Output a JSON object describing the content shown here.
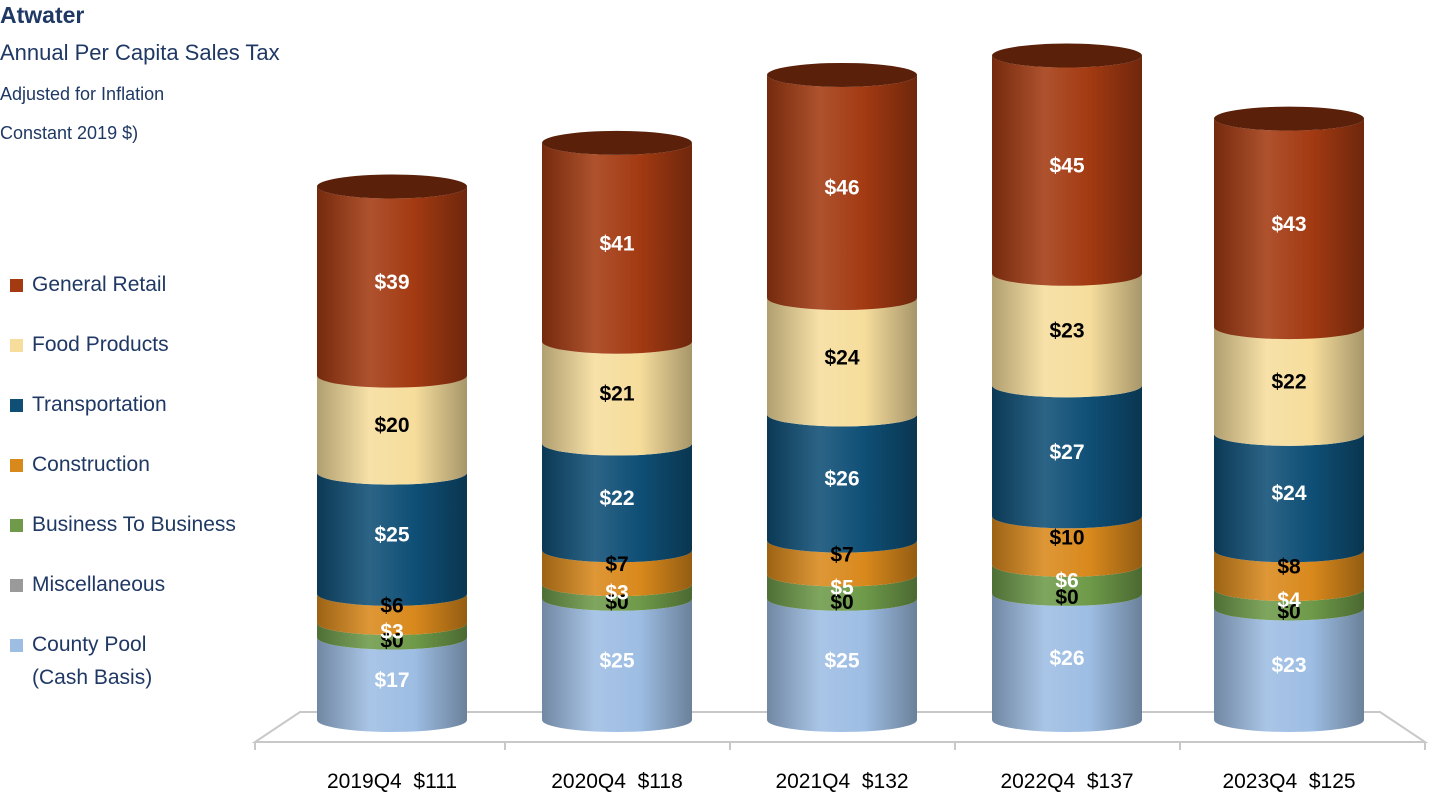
{
  "title": "Atwater",
  "subtitle": "Annual Per Capita Sales Tax",
  "note_line1": "Adjusted for Inflation",
  "note_line2": "Constant 2019 $)",
  "legend": [
    {
      "label": "General Retail",
      "color": "#a33a12"
    },
    {
      "label": "Food Products",
      "color": "#f6dd9c"
    },
    {
      "label": "Transportation",
      "color": "#0f4f76"
    },
    {
      "label": "Construction",
      "color": "#d9891c"
    },
    {
      "label": "Business To Business",
      "color": "#6e9a49"
    },
    {
      "label": "Miscellaneous",
      "color": "#9a9a9a"
    },
    {
      "label": "County Pool",
      "label2": "(Cash Basis)",
      "color": "#9dbde3"
    }
  ],
  "chart_data": {
    "type": "bar",
    "stacked": true,
    "style": "3d-cylinder",
    "categories": [
      "2019Q4  $111",
      "2020Q4  $118",
      "2021Q4  $132",
      "2022Q4  $137",
      "2023Q4  $125"
    ],
    "series": [
      {
        "name": "County Pool (Cash Basis)",
        "color": "#9dbde3",
        "label_color": "#ffffff",
        "values": [
          17,
          25,
          25,
          26,
          23
        ],
        "labels": [
          "$17",
          "$25",
          "$25",
          "$26",
          "$23"
        ]
      },
      {
        "name": "Miscellaneous",
        "color": "#9a9a9a",
        "label_color": "#000000",
        "values": [
          0,
          0,
          0,
          0,
          0
        ],
        "labels": [
          "$0",
          "$0",
          "$0",
          "$0",
          "$0"
        ]
      },
      {
        "name": "Business To Business",
        "color": "#6e9a49",
        "label_color": "#ffffff",
        "values": [
          3,
          3,
          5,
          6,
          4
        ],
        "labels": [
          "$3",
          "$3",
          "$5",
          "$6",
          "$4"
        ]
      },
      {
        "name": "Construction",
        "color": "#d9891c",
        "label_color": "#000000",
        "values": [
          6,
          7,
          7,
          10,
          8
        ],
        "labels": [
          "$6",
          "$7",
          "$7",
          "$10",
          "$8"
        ]
      },
      {
        "name": "Transportation",
        "color": "#0f4f76",
        "label_color": "#ffffff",
        "values": [
          25,
          22,
          26,
          27,
          24
        ],
        "labels": [
          "$25",
          "$22",
          "$26",
          "$27",
          "$24"
        ]
      },
      {
        "name": "Food Products",
        "color": "#f6dd9c",
        "label_color": "#000000",
        "values": [
          20,
          21,
          24,
          23,
          22
        ],
        "labels": [
          "$20",
          "$21",
          "$24",
          "$23",
          "$22"
        ]
      },
      {
        "name": "General Retail",
        "color": "#a33a12",
        "label_color": "#ffffff",
        "values": [
          39,
          41,
          46,
          45,
          43
        ],
        "labels": [
          "$39",
          "$41",
          "$46",
          "$45",
          "$43"
        ]
      }
    ],
    "ylim": [
      0,
      140
    ],
    "grid": false,
    "legend_position": "left"
  }
}
